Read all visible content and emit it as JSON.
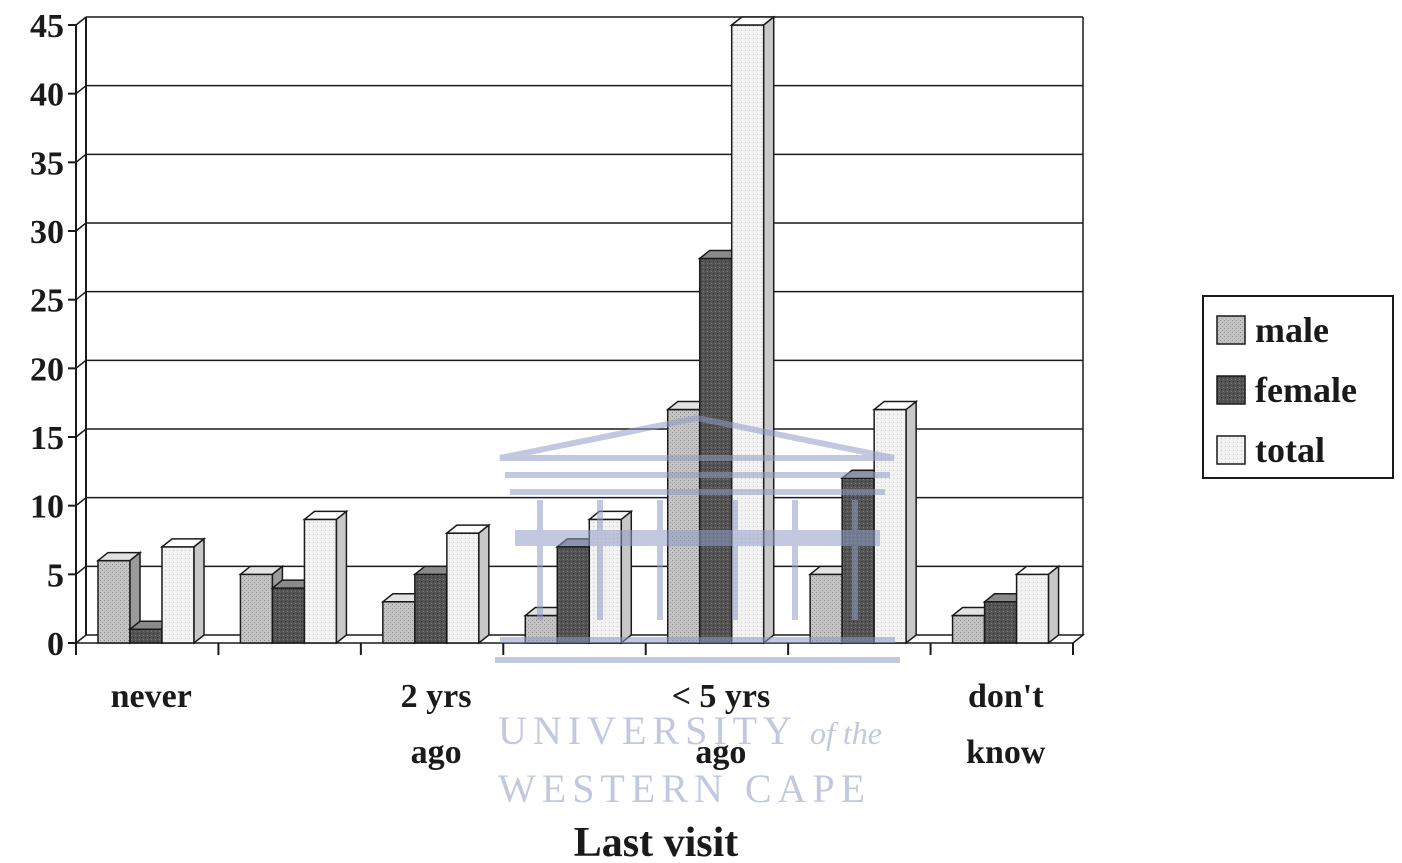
{
  "chart_data": {
    "type": "bar",
    "title": "",
    "xlabel": "Last visit",
    "ylabel": "",
    "ylim": [
      0,
      45
    ],
    "yticks": [
      0,
      5,
      10,
      15,
      20,
      25,
      30,
      35,
      40,
      45
    ],
    "grid": true,
    "legend_position": "right",
    "bar_style": "3d",
    "categories": [
      "never",
      "",
      "2 yrs ago",
      "",
      "< 5 yrs ago",
      "",
      "don't know"
    ],
    "category_label_lines": [
      [
        "never"
      ],
      [],
      [
        "2 yrs",
        "ago"
      ],
      [],
      [
        "< 5 yrs",
        "ago"
      ],
      [],
      [
        "don't",
        "know"
      ]
    ],
    "series": [
      {
        "name": "male",
        "color": "#bdbdbd",
        "values": [
          6,
          5,
          3,
          2,
          17,
          5,
          2
        ]
      },
      {
        "name": "female",
        "color": "#4a4a4a",
        "values": [
          1,
          4,
          5,
          7,
          28,
          12,
          3
        ]
      },
      {
        "name": "total",
        "color": "#ececec",
        "values": [
          7,
          9,
          8,
          9,
          45,
          17,
          5
        ]
      }
    ]
  },
  "watermark": {
    "line1": "UNIVERSITY",
    "line1_suffix": "of the",
    "line2": "WESTERN CAPE",
    "color": "#8f9cc6"
  }
}
